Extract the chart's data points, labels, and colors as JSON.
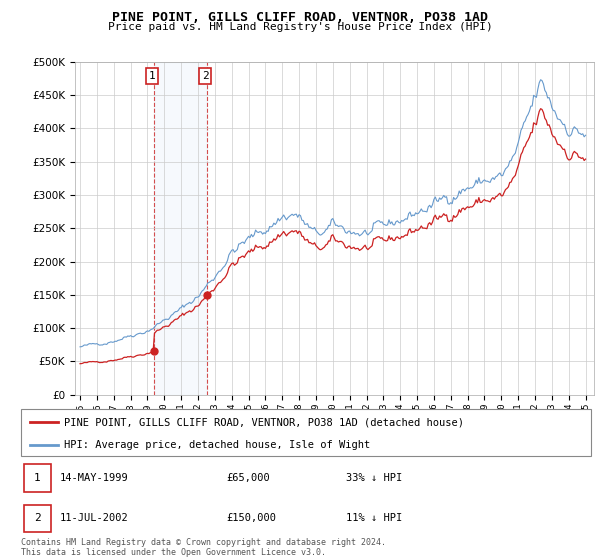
{
  "title": "PINE POINT, GILLS CLIFF ROAD, VENTNOR, PO38 1AD",
  "subtitle": "Price paid vs. HM Land Registry's House Price Index (HPI)",
  "legend_line1": "PINE POINT, GILLS CLIFF ROAD, VENTNOR, PO38 1AD (detached house)",
  "legend_line2": "HPI: Average price, detached house, Isle of Wight",
  "footer": "Contains HM Land Registry data © Crown copyright and database right 2024.\nThis data is licensed under the Open Government Licence v3.0.",
  "transaction1_date": "14-MAY-1999",
  "transaction1_price": "£65,000",
  "transaction1_hpi": "33% ↓ HPI",
  "transaction2_date": "11-JUL-2002",
  "transaction2_price": "£150,000",
  "transaction2_hpi": "11% ↓ HPI",
  "hpi_color": "#6699cc",
  "price_color": "#cc2222",
  "marker1_x": 1999.37,
  "marker1_y": 65000,
  "marker2_x": 2002.53,
  "marker2_y": 150000,
  "ylim": [
    0,
    500000
  ],
  "xlim": [
    1994.7,
    2025.5
  ]
}
